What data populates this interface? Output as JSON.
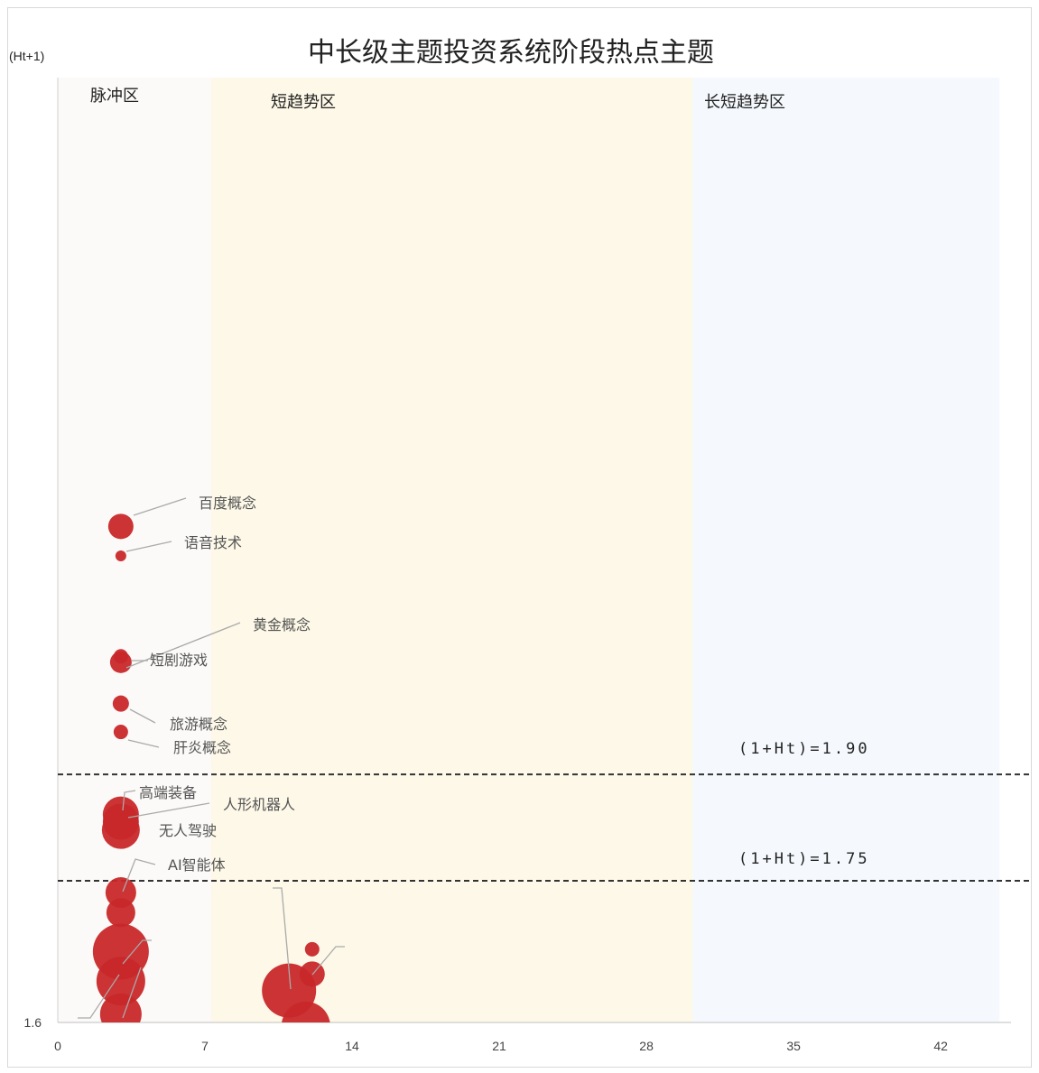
{
  "chart_data": {
    "type": "scatter",
    "title": "中长级主题投资系统阶段热点主题",
    "ylabel": "(Ht+1)",
    "xlabel": "",
    "xlim": [
      0,
      45
    ],
    "ylim": [
      1.6,
      2.4
    ],
    "x_ticks": [
      0,
      7,
      14,
      21,
      28,
      35,
      42
    ],
    "y_ticks": [
      1.6
    ],
    "y_tick_labels": [
      "1.6"
    ],
    "grid": false,
    "zones": [
      {
        "name": "脉冲区",
        "x_start": 0,
        "x_end": 7.3,
        "color": "#fbfaf8"
      },
      {
        "name": "短趋势区",
        "x_start": 7.3,
        "x_end": 30.2,
        "color": "#fdf8e7"
      },
      {
        "name": "长短趋势区",
        "x_start": 30.2,
        "x_end": 44.8,
        "color": "#f5f9fd"
      }
    ],
    "thresholds": [
      {
        "label": "(1+Ht)=1.90",
        "y": 1.81
      },
      {
        "label": "(1+Ht)=1.75",
        "y": 1.72
      }
    ],
    "bubble_color": "#c8282a",
    "points": [
      {
        "label": "百度概念",
        "x": 3.0,
        "y": 2.02,
        "size": 14
      },
      {
        "label": "语音技术",
        "x": 3.0,
        "y": 1.995,
        "size": 6
      },
      {
        "label": "黄金概念",
        "x": 3.0,
        "y": 1.91,
        "size": 8
      },
      {
        "label": "短剧游戏",
        "x": 3.0,
        "y": 1.905,
        "size": 12
      },
      {
        "label": "旅游概念",
        "x": 3.0,
        "y": 1.87,
        "size": 9
      },
      {
        "label": "肝炎概念",
        "x": 3.0,
        "y": 1.846,
        "size": 8
      },
      {
        "label": "高端装备",
        "x": 3.0,
        "y": 1.776,
        "size": 20
      },
      {
        "label": "人形机器人",
        "x": 3.0,
        "y": 1.77,
        "size": 20
      },
      {
        "label": "无人驾驶",
        "x": 3.0,
        "y": 1.763,
        "size": 21
      },
      {
        "label": "AI智能体",
        "x": 3.0,
        "y": 1.71,
        "size": 17
      },
      {
        "label": "",
        "x": 3.0,
        "y": 1.693,
        "size": 16
      },
      {
        "label": "",
        "x": 3.0,
        "y": 1.66,
        "size": 31
      },
      {
        "label": "",
        "x": 3.0,
        "y": 1.635,
        "size": 27
      },
      {
        "label": "",
        "x": 3.0,
        "y": 1.607,
        "size": 23
      },
      {
        "label": "",
        "x": 11.0,
        "y": 1.627,
        "size": 30
      },
      {
        "label": "",
        "x": 12.1,
        "y": 1.641,
        "size": 14
      },
      {
        "label": "",
        "x": 12.1,
        "y": 1.662,
        "size": 8
      },
      {
        "label": "",
        "x": 11.8,
        "y": 1.597,
        "size": 27
      }
    ]
  }
}
